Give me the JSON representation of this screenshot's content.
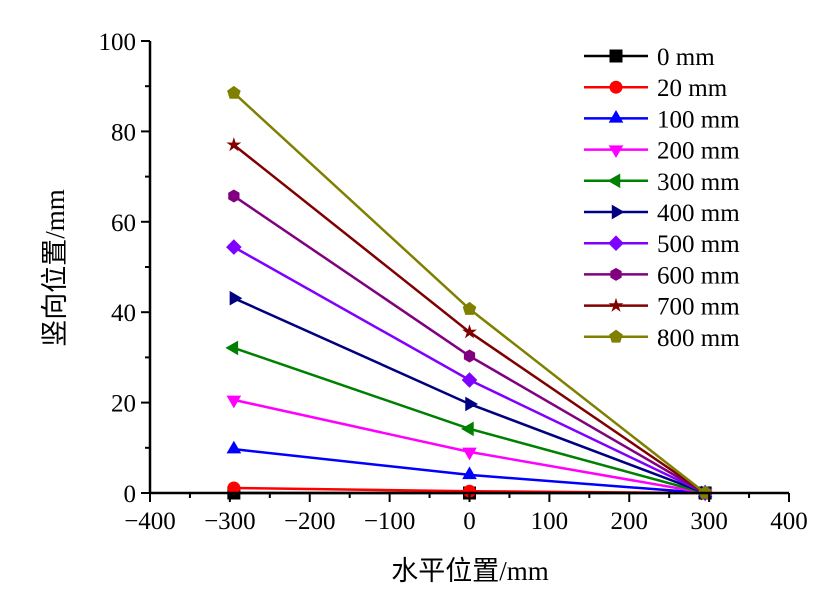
{
  "chart_data": {
    "type": "line",
    "title": "",
    "xlabel": "水平位置/mm",
    "ylabel": "竖向位置/mm",
    "xlim": [
      -400,
      400
    ],
    "ylim": [
      0,
      100
    ],
    "xticks": [
      "−400",
      "−300",
      "−200",
      "−100",
      "0",
      "100",
      "200",
      "300",
      "400"
    ],
    "yticks": [
      "0",
      "20",
      "40",
      "60",
      "80",
      "100"
    ],
    "grid": false,
    "legend_position": "top-right",
    "x": [
      -295,
      0,
      295
    ],
    "series": [
      {
        "name": "0 mm",
        "color": "#000000",
        "marker": "square",
        "values": [
          0,
          0,
          0
        ]
      },
      {
        "name": "20 mm",
        "color": "#ff0000",
        "marker": "circle",
        "values": [
          1.1,
          0.4,
          0
        ]
      },
      {
        "name": "100 mm",
        "color": "#0000ff",
        "marker": "triangle-up",
        "values": [
          9.7,
          4.0,
          0
        ]
      },
      {
        "name": "200 mm",
        "color": "#ff00ff",
        "marker": "triangle-down",
        "values": [
          20.6,
          9.1,
          0
        ]
      },
      {
        "name": "300 mm",
        "color": "#008000",
        "marker": "triangle-left",
        "values": [
          32.1,
          14.2,
          0
        ]
      },
      {
        "name": "400 mm",
        "color": "#000080",
        "marker": "triangle-right",
        "values": [
          43.1,
          19.7,
          0
        ]
      },
      {
        "name": "500 mm",
        "color": "#8000ff",
        "marker": "diamond",
        "values": [
          54.4,
          25.0,
          0
        ]
      },
      {
        "name": "600 mm",
        "color": "#800080",
        "marker": "hexagon",
        "values": [
          65.7,
          30.3,
          0
        ]
      },
      {
        "name": "700 mm",
        "color": "#800000",
        "marker": "star",
        "values": [
          77.0,
          35.6,
          0
        ]
      },
      {
        "name": "800 mm",
        "color": "#808000",
        "marker": "pentagon",
        "values": [
          88.5,
          40.7,
          0
        ]
      }
    ]
  }
}
